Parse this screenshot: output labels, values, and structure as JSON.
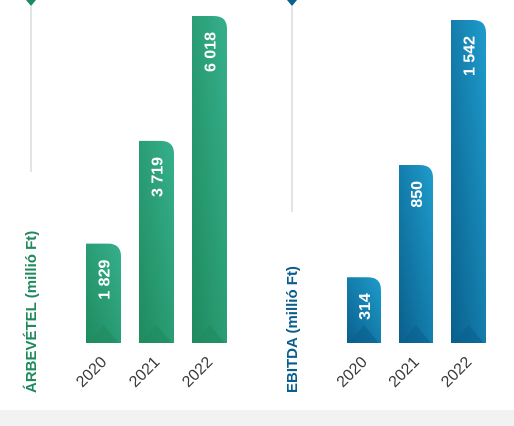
{
  "colors": {
    "green_dark": "#1f8a5e",
    "green_light": "#35b08c",
    "blue_dark": "#0a5f8c",
    "blue_light": "#1e9ccc",
    "axis_gray": "#c8c8c8",
    "year_text": "#3a3a3a",
    "bottom_band": "#f2f2f2"
  },
  "chart_data": [
    {
      "type": "bar",
      "ylabel": "ÁRBEVÉTEL (millió Ft)",
      "categories": [
        "2020",
        "2021",
        "2022"
      ],
      "values": [
        1829,
        3719,
        6018
      ],
      "value_labels": [
        "1 829",
        "3 719",
        "6 018"
      ],
      "ylim": [
        0,
        6018
      ],
      "color": "green",
      "grid": false
    },
    {
      "type": "bar",
      "ylabel": "EBITDA (millió Ft)",
      "categories": [
        "2020",
        "2021",
        "2022"
      ],
      "values": [
        314,
        850,
        1542
      ],
      "value_labels": [
        "314",
        "850",
        "1 542"
      ],
      "ylim": [
        0,
        1542
      ],
      "color": "blue",
      "grid": false
    }
  ]
}
